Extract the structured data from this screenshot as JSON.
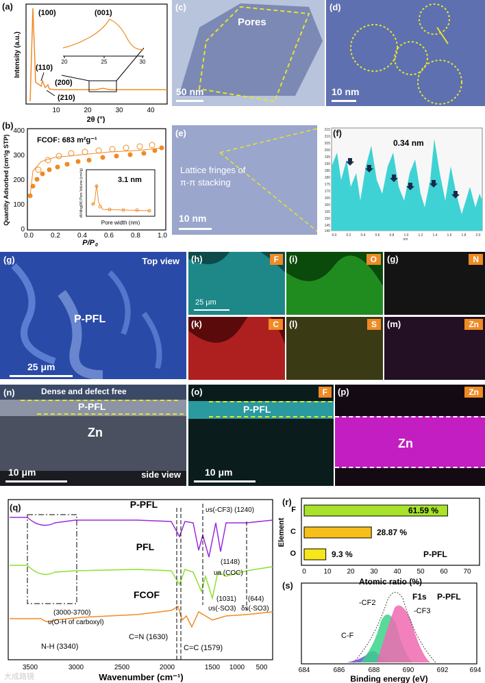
{
  "panels": {
    "a": {
      "label": "(a)",
      "peak100": "(100)",
      "peak001": "(001)",
      "peak110": "(110)",
      "peak200": "(200)",
      "peak210": "(210)",
      "xlabel": "2θ (°)",
      "ylabel": "Intensity (a.u.)",
      "xticks": [
        "10",
        "20",
        "30",
        "40"
      ],
      "inset_xticks": [
        "20",
        "25",
        "30"
      ]
    },
    "b": {
      "label": "(b)",
      "note": "FCOF: 683 m²g⁻¹",
      "ylabel": "Quantity Adsorbed (cm³/g STP)",
      "xlabel_main": "P/P",
      "xlabel_sub": "0",
      "xticks": [
        "0.0",
        "0.2",
        "0.4",
        "0.6",
        "0.8",
        "1.0"
      ],
      "yticks": [
        "0",
        "100",
        "200",
        "300",
        "400"
      ],
      "inset_value": "3.1 nm",
      "inset_xlabel": "Pore width (nm)",
      "inset_ylabel": "dV/dlog(W) Pore Volume (cm³/g)",
      "inset_xticks": [
        "2",
        "4",
        "6",
        "8",
        "10"
      ]
    },
    "c": {
      "label": "(c)",
      "text": "Pores",
      "scale": "50 nm"
    },
    "d": {
      "label": "(d)",
      "scale": "10 nm"
    },
    "e": {
      "label": "(e)",
      "text1": "Lattice fringes of",
      "text2": "π-π stacking",
      "scale": "10 nm"
    },
    "f": {
      "label": "(f)",
      "value": "0.34 nm",
      "xunit": "nm",
      "yticks": [
        "215",
        "210",
        "205",
        "200",
        "195",
        "190",
        "185",
        "180",
        "175",
        "170",
        "165",
        "160",
        "155",
        "150",
        "145",
        "140"
      ],
      "xticks": [
        "0.0",
        "0.2",
        "0.4",
        "0.6",
        "0.8",
        "1.0",
        "1.2",
        "1.4",
        "1.6",
        "1.8",
        "2.0"
      ]
    },
    "g": {
      "label": "(g)",
      "view": "Top view",
      "text": "P-PFL",
      "scale": "25 μm"
    },
    "h": {
      "label": "(h)",
      "element": "F",
      "scale": "25 μm"
    },
    "i": {
      "label": "(i)",
      "element": "O"
    },
    "g2": {
      "label": "(g)",
      "element": "N"
    },
    "k": {
      "label": "(k)",
      "element": "C"
    },
    "l": {
      "label": "(l)",
      "element": "S"
    },
    "m": {
      "label": "(m)",
      "element": "Zn"
    },
    "n": {
      "label": "(n)",
      "top": "Dense and defect free",
      "layer": "P-PFL",
      "zn": "Zn",
      "scale": "10 μm",
      "view": "side view"
    },
    "o": {
      "label": "(o)",
      "element": "F",
      "layer": "P-PFL",
      "scale": "10 μm"
    },
    "p": {
      "label": "(p)",
      "element": "Zn",
      "zn": "Zn"
    },
    "q": {
      "label": "(q)",
      "xlabel": "Wavenumber (cm⁻¹)",
      "xticks": [
        "3500",
        "3000",
        "2500",
        "2000",
        "1500",
        "1000",
        "500"
      ],
      "s_ppfl": "P-PFL",
      "s_pfl": "PFL",
      "s_fcof": "FCOF",
      "a1": "υs(-CF3) (1240)",
      "a2": "(1148)",
      "a3": "υa (COC)",
      "a4": "(3000-3700)",
      "a5": "υ(O-H of carboxyl)",
      "a6": "(1031)",
      "a7": "(644)",
      "a8": "υs(-SO3)",
      "a9": "δs(-SO3)",
      "a10": "N-H (3340)",
      "a11": "C=N (1630)",
      "a12": "C=C (1579)"
    },
    "r": {
      "label": "(r)",
      "ylabel": "Element",
      "xlabel": "Atomic ratio (%)",
      "sample": "P-PFL",
      "xticks": [
        "0",
        "10",
        "20",
        "30",
        "40",
        "50",
        "60",
        "70"
      ],
      "bars": [
        {
          "el": "F",
          "value": 61.59,
          "text": "61.59 %",
          "color": "#a8e22a"
        },
        {
          "el": "C",
          "value": 28.87,
          "text": "28.87 %",
          "color": "#f7bf1a"
        },
        {
          "el": "O",
          "value": 9.3,
          "text": "9.3 %",
          "color": "#f7e61a"
        }
      ]
    },
    "s": {
      "label": "(s)",
      "title": "F1s",
      "sample": "P-PFL",
      "p1": "-CF2",
      "p2": "-CF3",
      "p3": "C-F",
      "xlabel": "Binding energy (eV)",
      "xticks": [
        "684",
        "686",
        "688",
        "690",
        "692",
        "694"
      ]
    }
  },
  "watermark": "大成路镜"
}
